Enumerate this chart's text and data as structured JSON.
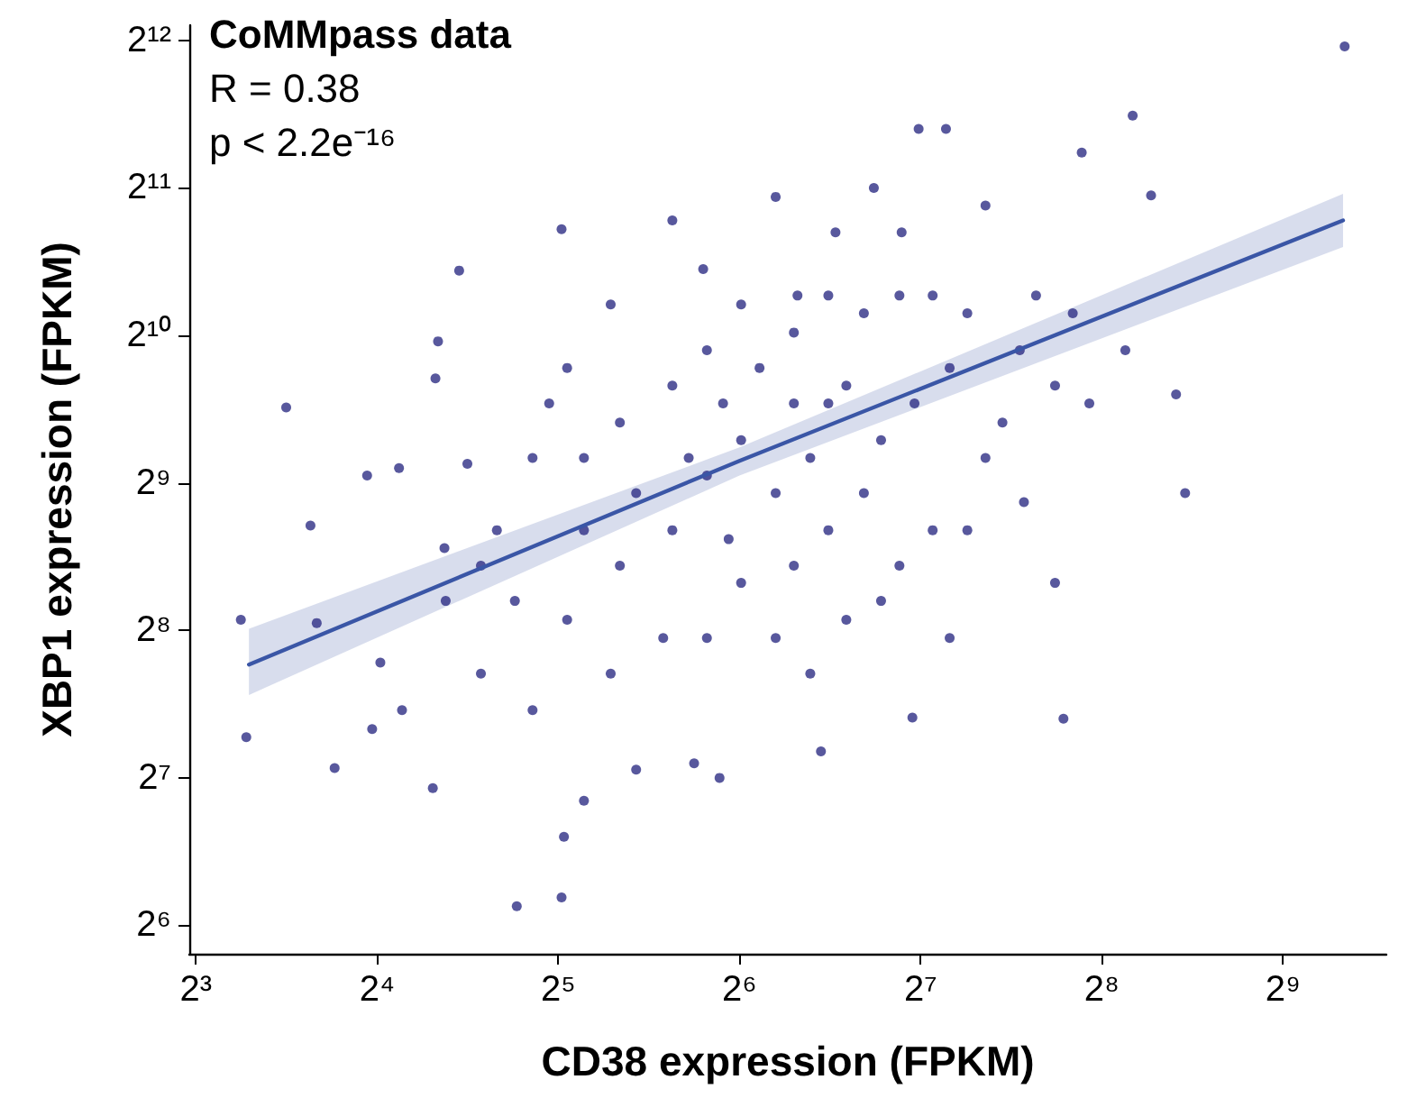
{
  "chart_data": {
    "type": "scatter",
    "xlabel": "CD38 expression (FPKM)",
    "ylabel": "XBP1 expression (FPKM)",
    "log": "xy",
    "marker": "circle",
    "grid": false,
    "annotations": [
      "CoMMpass data",
      "R = 0.38",
      "p < 2.2e⁻¹⁶"
    ],
    "xlim": [
      7.8,
      760
    ],
    "ylim": [
      56,
      4400
    ],
    "xticks": [
      {
        "value": 8,
        "label": "2³"
      },
      {
        "value": 16,
        "label": "2⁴"
      },
      {
        "value": 32,
        "label": "2⁵"
      },
      {
        "value": 64,
        "label": "2⁶"
      },
      {
        "value": 128,
        "label": "2⁷"
      },
      {
        "value": 256,
        "label": "2⁸"
      },
      {
        "value": 512,
        "label": "2⁹"
      }
    ],
    "yticks": [
      {
        "value": 64,
        "label": "2⁶"
      },
      {
        "value": 128,
        "label": "2⁷"
      },
      {
        "value": 256,
        "label": "2⁸"
      },
      {
        "value": 512,
        "label": "2⁹"
      },
      {
        "value": 1024,
        "label": "2¹⁰"
      },
      {
        "value": 2048,
        "label": "2¹¹"
      },
      {
        "value": 4096,
        "label": "2¹²"
      }
    ],
    "series": [
      {
        "color": "#2e2e85",
        "x": [
          9.5,
          9.7,
          11.3,
          12.4,
          12.7,
          13.6,
          15.4,
          15.7,
          16.2,
          17.4,
          17.6,
          19.8,
          20.0,
          20.2,
          20.7,
          21.9,
          22.6,
          23.8,
          27.3,
          32.4,
          32.7,
          32.4,
          33.1,
          39.1,
          49.5,
          55.7,
          61.4,
          64.4,
          73.5,
          87.4,
          92.4,
          119,
          124,
          127,
          141,
          164,
          190,
          214,
          237,
          288,
          309,
          340,
          352,
          648,
          221,
          143,
          59.3,
          53.8,
          43.1,
          35.3,
          39.1,
          47.8,
          29.0,
          27.1,
          25.3,
          29.0,
          35.3,
          40.5,
          49.5,
          56.5,
          64.4,
          73.5,
          83.9,
          96.3,
          110,
          125,
          143,
          164,
          187,
          214,
          244,
          280,
          56.5,
          49.5,
          40.5,
          35.3,
          43.1,
          64.4,
          78.8,
          89.9,
          103,
          118,
          134,
          153,
          73.5,
          56.5,
          83.9,
          96.3,
          110,
          69.1,
          78.8,
          89.9,
          103,
          118,
          134,
          153,
          175,
          199,
          229,
          30.9,
          23.8,
          20.8,
          89.9,
          60.1,
          52.7,
          78.8,
          33.1,
          107,
          79.9
        ],
        "values": [
          269,
          155,
          730,
          419,
          265,
          134,
          530,
          161,
          220,
          549,
          176,
          122,
          837,
          996,
          377,
          1389,
          560,
          209,
          70,
          73,
          97,
          1687,
          879,
          1184,
          1758,
          1399,
          393,
          1184,
          1964,
          145,
          1663,
          1663,
          170,
          2702,
          2702,
          1885,
          468,
          320,
          2418,
          2876,
          1978,
          776,
          488,
          3984,
          169,
          247,
          128,
          137,
          133,
          115,
          209,
          247,
          176,
          294,
          410,
          576,
          410,
          347,
          410,
          530,
          626,
          488,
          576,
          809,
          626,
          744,
          879,
          576,
          955,
          809,
          744,
          955,
          955,
          809,
          680,
          576,
          488,
          320,
          347,
          410,
          488,
          347,
          410,
          410,
          247,
          247,
          209,
          269,
          294,
          879,
          1038,
          1235,
          1136,
          1235,
          1235,
          1136,
          680,
          1235,
          1136,
          744,
          347,
          294,
          744,
          744,
          576,
          744,
          269,
          2048,
          1235
        ]
      },
      {
        "type": "line",
        "marker": "none",
        "color": "#3a56a6",
        "x": [
          9.8,
          64,
          644
        ],
        "values": [
          218,
          568,
          1758
        ],
        "lower": [
          189,
          530,
          1552
        ],
        "upper": [
          258,
          605,
          1992
        ]
      }
    ]
  }
}
